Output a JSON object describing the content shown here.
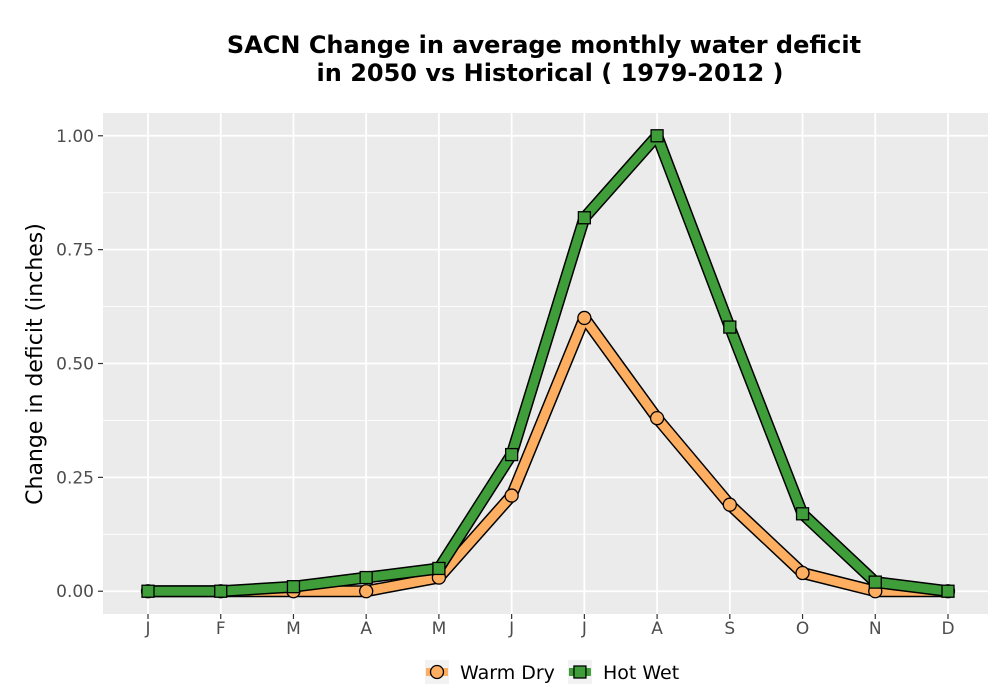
{
  "chart_data": {
    "type": "line",
    "title_line1": "SACN  Change in average monthly water deficit",
    "title_line2": "in 2050 vs Historical ( 1979-2012 )",
    "xlabel": "",
    "ylabel": "Change in deficit (inches)",
    "categories": [
      "J",
      "F",
      "M",
      "A",
      "M",
      "J",
      "J",
      "A",
      "S",
      "O",
      "N",
      "D"
    ],
    "ylim": [
      -0.05,
      1.05
    ],
    "yticks": [
      0.0,
      0.25,
      0.5,
      0.75,
      1.0
    ],
    "ytick_labels": [
      "0.00",
      "0.25",
      "0.50",
      "0.75",
      "1.00"
    ],
    "grid": true,
    "legend_position": "bottom",
    "series": [
      {
        "name": "Warm Dry",
        "marker": "circle",
        "color": "#fdae61",
        "values": [
          0.0,
          0.0,
          0.0,
          0.0,
          0.03,
          0.21,
          0.6,
          0.38,
          0.19,
          0.04,
          0.0,
          0.0
        ]
      },
      {
        "name": "Hot Wet",
        "marker": "square",
        "color": "#3f9e3a",
        "values": [
          0.0,
          0.0,
          0.01,
          0.03,
          0.05,
          0.3,
          0.82,
          1.0,
          0.58,
          0.17,
          0.02,
          0.0
        ]
      }
    ],
    "colors": {
      "panel": "#ebebeb",
      "grid": "#ffffff",
      "outline": "#000000"
    }
  }
}
